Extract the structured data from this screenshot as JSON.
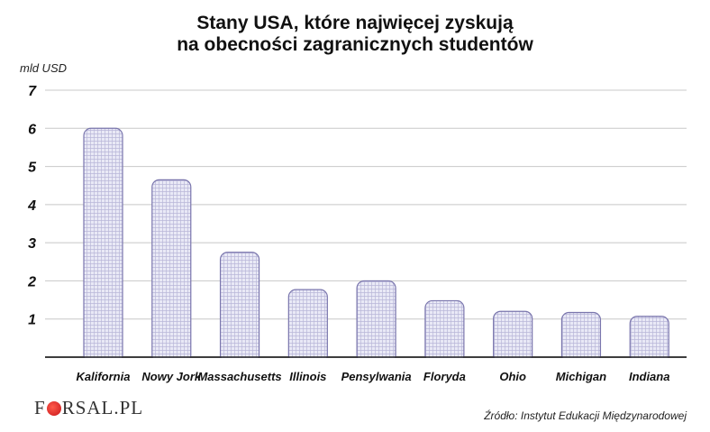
{
  "header": {
    "title_line1": "Stany USA, które najwięcej zyskują",
    "title_line2": "na obecności zagranicznych studentów"
  },
  "footer": {
    "logo_part1": "F",
    "logo_part2": "RSAL.PL",
    "source": "Źródło: Instytut Edukacji Międzynarodowej"
  },
  "chart_data": {
    "type": "bar",
    "title": "Stany USA, które najwięcej zyskują na obecności zagranicznych studentów",
    "ylabel": "mld USD",
    "xlabel": "",
    "ylim": [
      0,
      7
    ],
    "yticks": [
      1,
      2,
      3,
      4,
      5,
      6,
      7
    ],
    "grid": true,
    "categories": [
      "Kalifornia",
      "Nowy Jork",
      "Massachusetts",
      "Illinois",
      "Pensylwania",
      "Floryda",
      "Ohio",
      "Michigan",
      "Indiana"
    ],
    "values": [
      6.0,
      4.65,
      2.75,
      1.77,
      2.0,
      1.48,
      1.2,
      1.17,
      1.07
    ]
  },
  "colors": {
    "bar_fill": "#e9e9f6",
    "bar_stroke": "#7a76ad",
    "bar_hatch": "#b9b7d9",
    "grid": "#c8c8c8",
    "axis": "#222222"
  }
}
